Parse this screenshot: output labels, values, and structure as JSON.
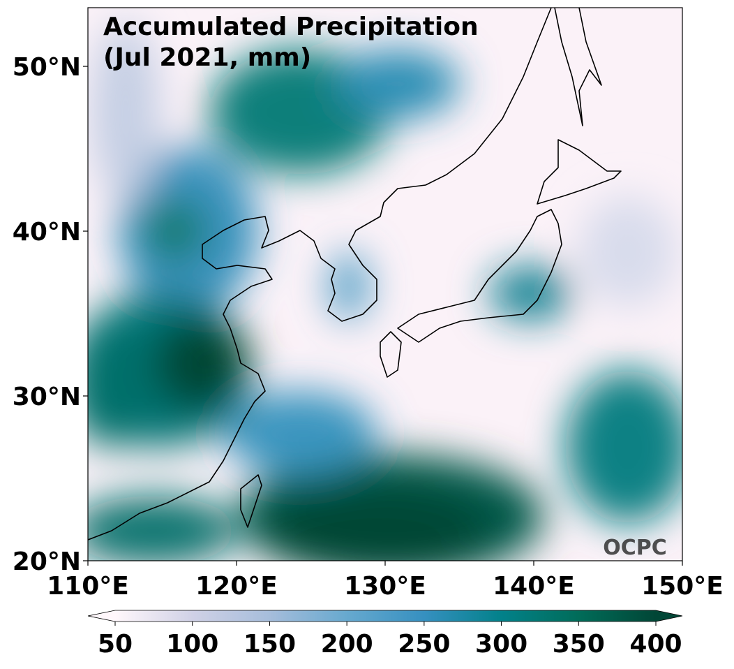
{
  "map": {
    "title": [
      "Accumulated Precipitation",
      "(Jul 2021, mm)"
    ],
    "lon_range": [
      110,
      150
    ],
    "lat_range": [
      20,
      53.56
    ],
    "lon_ticks": [
      {
        "value": 110,
        "label": "110°E"
      },
      {
        "value": 120,
        "label": "120°E"
      },
      {
        "value": 130,
        "label": "130°E"
      },
      {
        "value": 140,
        "label": "140°E"
      },
      {
        "value": 150,
        "label": "150°E"
      }
    ],
    "lat_ticks": [
      {
        "value": 20,
        "label": "20°N"
      },
      {
        "value": 30,
        "label": "30°N"
      },
      {
        "value": 40,
        "label": "40°N"
      },
      {
        "value": 50,
        "label": "50°N"
      }
    ],
    "colorbar": {
      "range": [
        50,
        400
      ],
      "ticks": [
        50,
        100,
        150,
        200,
        250,
        300,
        350,
        400
      ],
      "colors": [
        "#fff7fb",
        "#d0d1e6",
        "#a6bddb",
        "#67a9cf",
        "#3690c0",
        "#02818a",
        "#016c59",
        "#014636"
      ]
    },
    "watermark": "OCPC"
  }
}
